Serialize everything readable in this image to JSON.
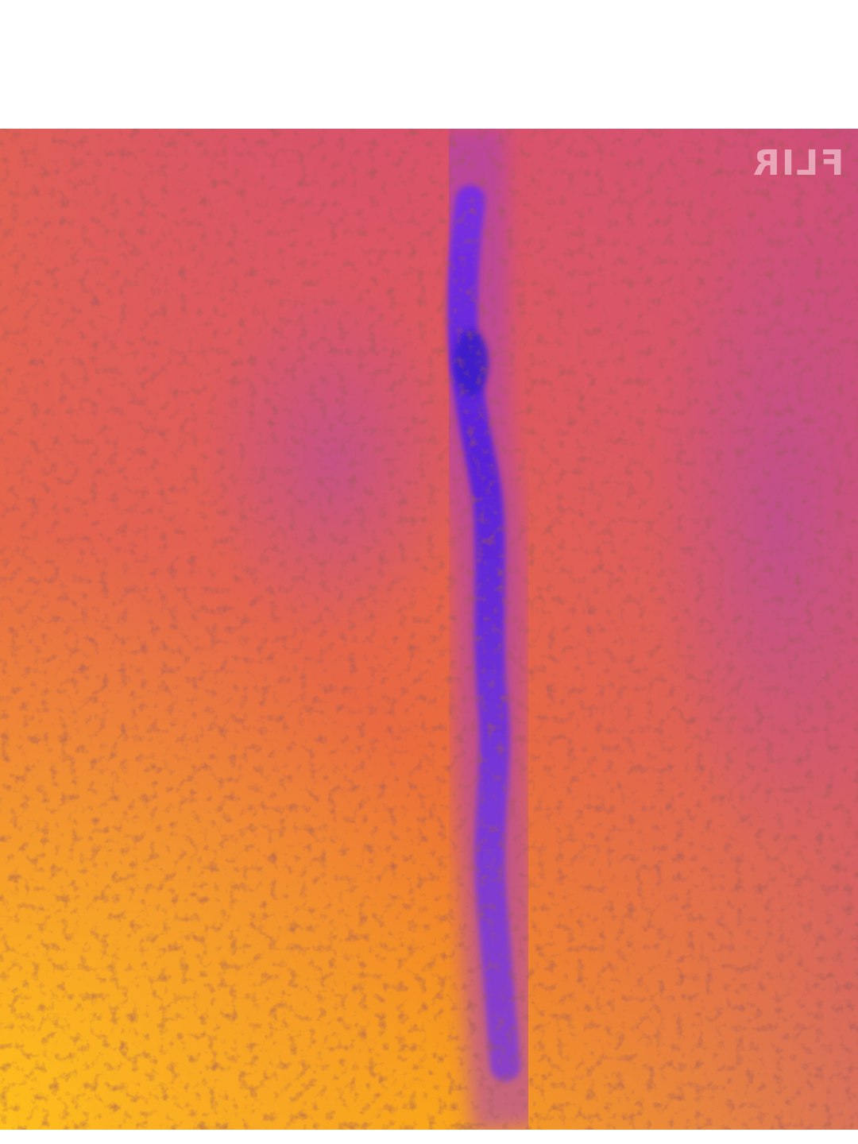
{
  "image": {
    "subject": "thermal-wall-crack",
    "palette": {
      "cool": "#6a2bd8",
      "mid": "#d9526a",
      "warm": "#ea6a3e",
      "hot": "#f9a21a",
      "background": "#ffffff"
    }
  },
  "watermark": {
    "text": "FLIR"
  }
}
